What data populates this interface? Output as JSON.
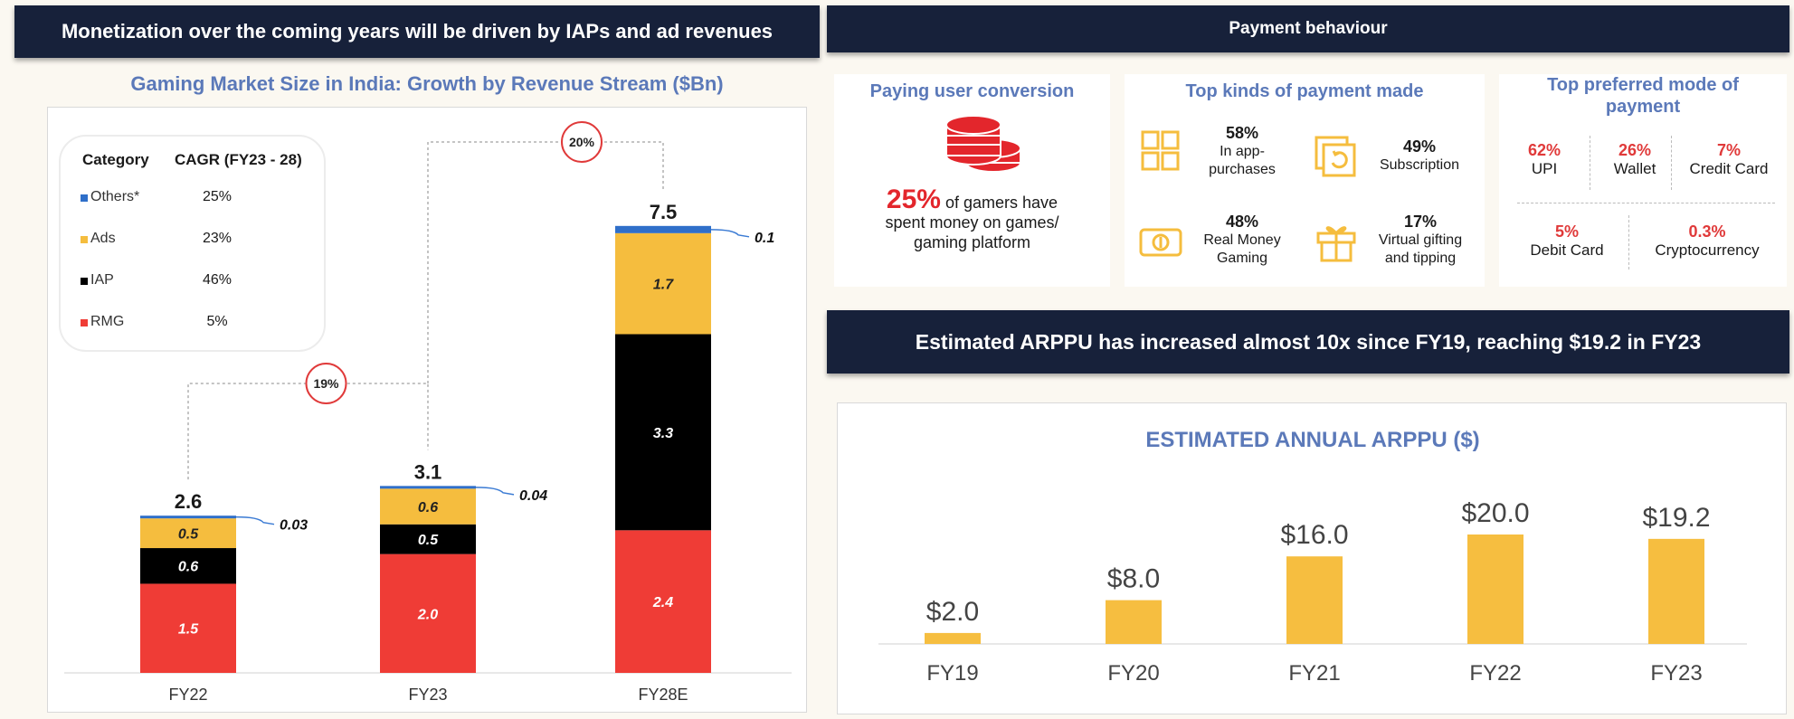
{
  "left": {
    "banner": "Monetization over the coming years will be driven by IAPs and ad revenues",
    "chart_title": "Gaming Market Size in India: Growth by Revenue Stream ($Bn)",
    "legend": {
      "header_category": "Category",
      "header_cagr": "CAGR (FY23 - 28)",
      "rows": [
        {
          "name": "Others*",
          "cagr": "25%",
          "color": "#2f6fc9"
        },
        {
          "name": "Ads",
          "cagr": "23%",
          "color": "#f5bd3e"
        },
        {
          "name": "IAP",
          "cagr": "46%",
          "color": "#000000"
        },
        {
          "name": "RMG",
          "cagr": "5%",
          "color": "#ef3c36"
        }
      ]
    },
    "growth_badges": [
      "19%",
      "20%"
    ]
  },
  "right": {
    "banner_top": "Payment behaviour",
    "conversion": {
      "title": "Paying user conversion",
      "pct": "25%",
      "text_rest": "of gamers have",
      "text_line2": "spent money on games/",
      "text_line3": "gaming platform"
    },
    "payment_kinds": {
      "title": "Top kinds of payment made",
      "items": [
        {
          "pct": "58%",
          "label1": "In app-",
          "label2": "purchases",
          "icon": "grid-icon"
        },
        {
          "pct": "49%",
          "label1": "Subscription",
          "label2": "",
          "icon": "calendar-refresh-icon"
        },
        {
          "pct": "48%",
          "label1": "Real Money",
          "label2": "Gaming",
          "icon": "cash-icon"
        },
        {
          "pct": "17%",
          "label1": "Virtual gifting",
          "label2": "and tipping",
          "icon": "gift-icon"
        }
      ]
    },
    "pay_modes": {
      "title_line1": "Top preferred mode of",
      "title_line2": "payment",
      "items": [
        {
          "pct": "62%",
          "label": "UPI"
        },
        {
          "pct": "26%",
          "label": "Wallet"
        },
        {
          "pct": "7%",
          "label": "Credit Card"
        },
        {
          "pct": "5%",
          "label": "Debit Card"
        },
        {
          "pct": "0.3%",
          "label": "Cryptocurrency"
        }
      ]
    },
    "banner_mid": "Estimated ARPPU has increased almost 10x since FY19, reaching $19.2 in FY23"
  },
  "colors": {
    "navy": "#17213a",
    "blue_title": "#5b79b9",
    "red": "#ef3c36",
    "yellow": "#f5bd3e",
    "black": "#000000",
    "others": "#2f6fc9",
    "arppu_bar": "#f6be40"
  },
  "chart_data": [
    {
      "type": "bar",
      "stacked": true,
      "title": "Gaming Market Size in India: Growth by Revenue Stream ($Bn)",
      "categories": [
        "FY22",
        "FY23",
        "FY28E"
      ],
      "series": [
        {
          "name": "RMG",
          "values": [
            1.5,
            2.0,
            2.4
          ],
          "labels": [
            "1.5",
            "2.0",
            "2.4"
          ]
        },
        {
          "name": "IAP",
          "values": [
            0.6,
            0.5,
            3.3
          ],
          "labels": [
            "0.6",
            "0.5",
            "3.3"
          ]
        },
        {
          "name": "Ads",
          "values": [
            0.5,
            0.6,
            1.7
          ],
          "labels": [
            "0.5",
            "0.6",
            "1.7"
          ]
        },
        {
          "name": "Others*",
          "values": [
            0.03,
            0.04,
            0.1
          ],
          "labels": [
            "0.03",
            "0.04",
            "0.1"
          ]
        }
      ],
      "totals": [
        "2.6",
        "3.1",
        "7.5"
      ],
      "annotations": [
        "19%",
        "20%"
      ]
    },
    {
      "type": "bar",
      "title": "ESTIMATED ANNUAL ARPPU ($)",
      "categories": [
        "FY19",
        "FY20",
        "FY21",
        "FY22",
        "FY23"
      ],
      "values": [
        2.0,
        8.0,
        16.0,
        20.0,
        19.2
      ],
      "labels": [
        "$2.0",
        "$8.0",
        "$16.0",
        "$20.0",
        "$19.2"
      ]
    }
  ]
}
